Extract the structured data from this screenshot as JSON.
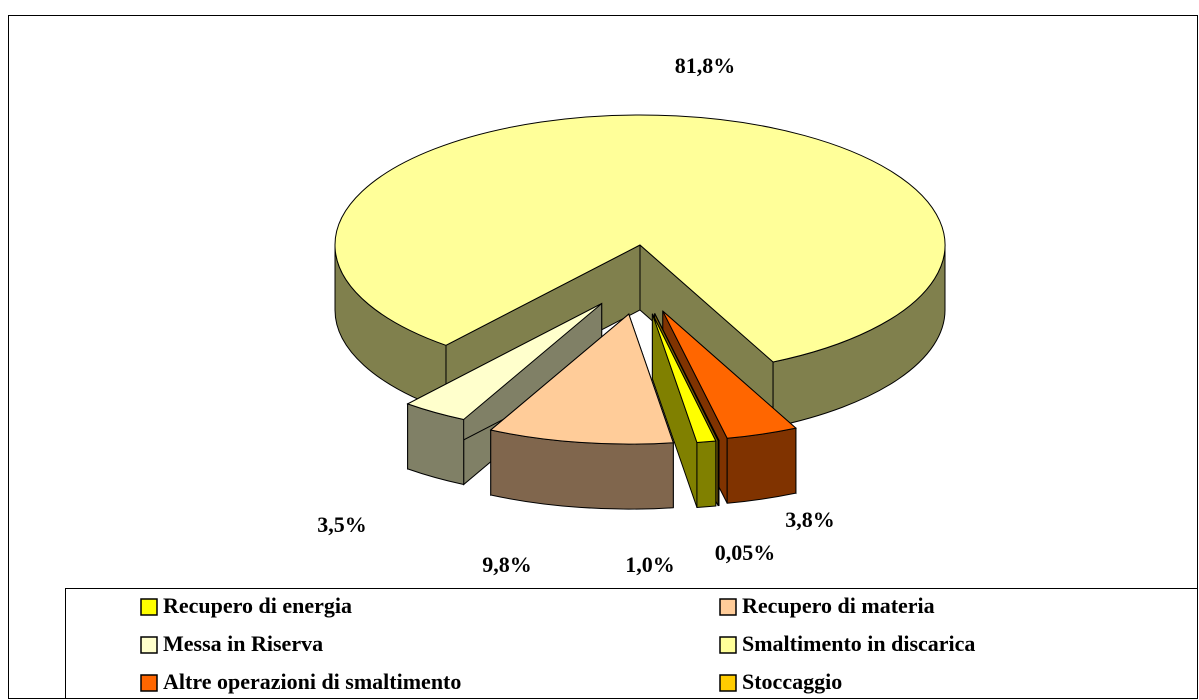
{
  "chart_data": {
    "type": "pie",
    "categories": [
      "Recupero di energia",
      "Recupero di materia",
      "Messa in Riserva",
      "Smaltimento in discarica",
      "Altre operazioni di smaltimento",
      "Stoccaggio"
    ],
    "values": [
      1.0,
      9.8,
      3.5,
      81.8,
      3.8,
      0.05
    ],
    "value_labels": [
      "1,0%",
      "9,8%",
      "3,5%",
      "81,8%",
      "3,8%",
      "0,05%"
    ],
    "colors": [
      "#ffff00",
      "#ffcc99",
      "#ffffcc",
      "#ffff99",
      "#ff6600",
      "#ffcc00"
    ],
    "legend": "bottom"
  }
}
